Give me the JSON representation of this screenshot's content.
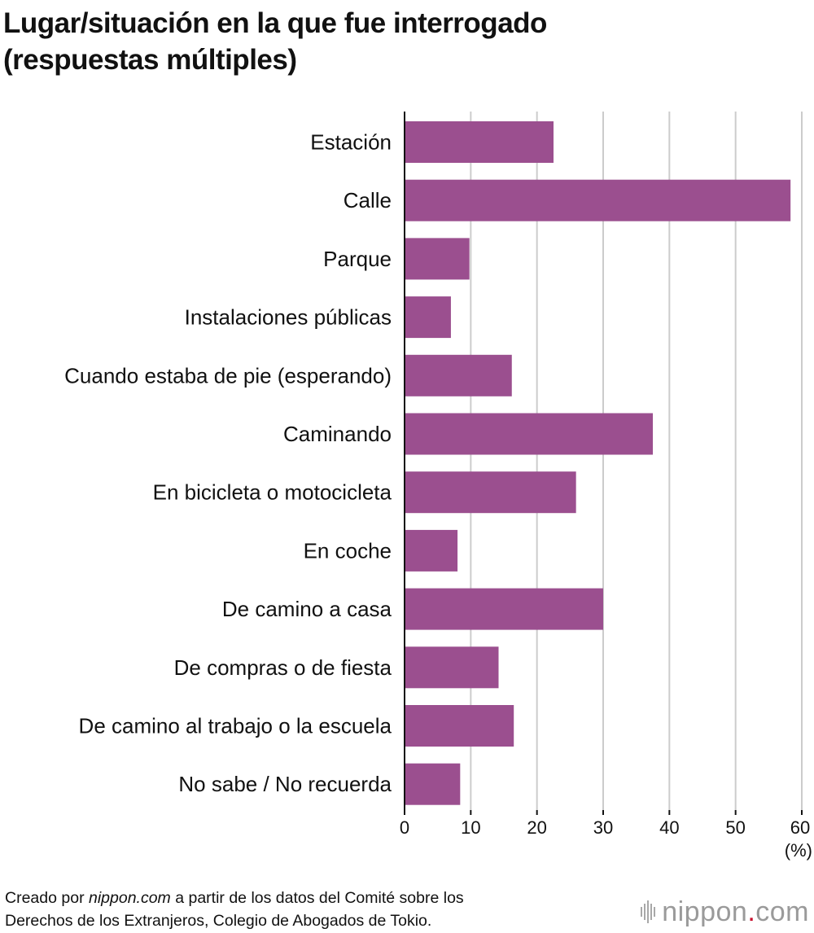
{
  "title_lines": [
    "Lugar/situación en la que fue interrogado",
    "(respuestas múltiples)"
  ],
  "colors": {
    "bar": "#9b4f8f",
    "grid": "#cccccc",
    "axis": "#111111",
    "brand": "#9a9a9a",
    "brand_dot": "#c8102e"
  },
  "chart_data": {
    "type": "bar",
    "orientation": "horizontal",
    "title": "Lugar/situación en la que fue interrogado (respuestas múltiples)",
    "categories": [
      "Estación",
      "Calle",
      "Parque",
      "Instalaciones públicas",
      "Cuando estaba de pie (esperando)",
      "Caminando",
      "En bicicleta o motocicleta",
      "En coche",
      "De camino a casa",
      "De compras o de fiesta",
      "De camino al trabajo o la escuela",
      "No sabe / No recuerda"
    ],
    "values": [
      22.5,
      58.3,
      9.8,
      7.0,
      16.2,
      37.5,
      25.9,
      8.0,
      30.0,
      14.2,
      16.5,
      8.4
    ],
    "xlim": [
      0,
      60
    ],
    "xticks": [
      0,
      10,
      20,
      30,
      40,
      50,
      60
    ],
    "xlabel": "",
    "xunit": "(%)",
    "grid": true
  },
  "footer": {
    "line1_prefix": "Creado por ",
    "line1_source": "nippon.com",
    "line1_suffix": " a partir de los datos del Comité sobre los",
    "line2": "Derechos de los Extranjeros, Colegio de Abogados de Tokio."
  },
  "brand": {
    "name": "nippon",
    "dot": ".",
    "tld": "com",
    "icon": "nippon-logo-bars-icon"
  }
}
